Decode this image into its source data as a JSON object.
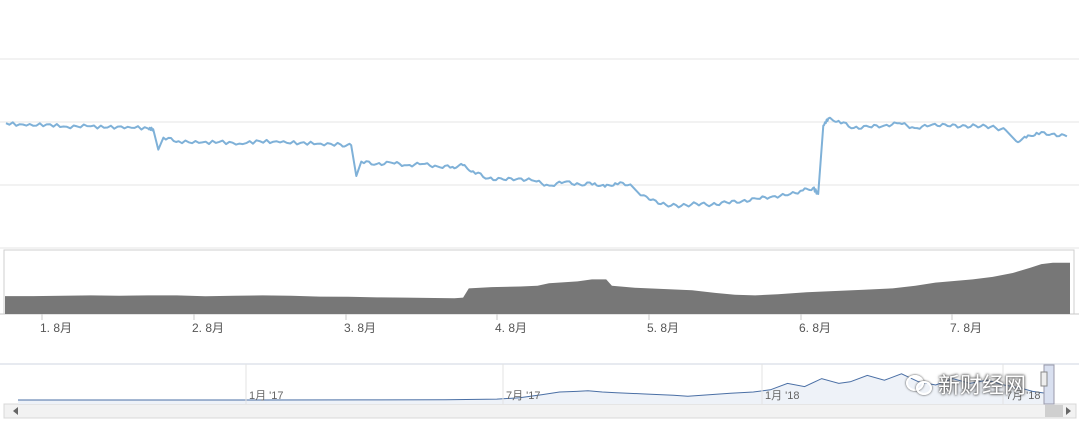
{
  "chart_data": {
    "type": "line",
    "main": {
      "x_ticks": [
        "1. 8月",
        "2. 8月",
        "3. 8月",
        "4. 8月",
        "5. 8月",
        "6. 8月",
        "7. 8月"
      ],
      "x_start_day": 0,
      "x_end_day": 210,
      "ylim": [
        0,
        100
      ],
      "grid": true,
      "series": [
        {
          "color": "#7fb1d8",
          "points": [
            [
              0,
              52
            ],
            [
              4,
              51
            ],
            [
              8,
              51.5
            ],
            [
              12,
              50.5
            ],
            [
              16,
              50.8
            ],
            [
              20,
              50.2
            ],
            [
              24,
              50.5
            ],
            [
              28,
              49.8
            ],
            [
              29,
              49.5
            ],
            [
              30,
              41
            ],
            [
              31,
              46
            ],
            [
              34,
              44.5
            ],
            [
              38,
              43.8
            ],
            [
              42,
              44.2
            ],
            [
              46,
              43.5
            ],
            [
              50,
              44.5
            ],
            [
              54,
              44
            ],
            [
              58,
              43.8
            ],
            [
              62,
              43.5
            ],
            [
              66,
              43
            ],
            [
              68,
              42.8
            ],
            [
              69,
              30
            ],
            [
              70,
              36
            ],
            [
              73,
              35
            ],
            [
              76,
              35.5
            ],
            [
              79,
              34.5
            ],
            [
              82,
              35
            ],
            [
              85,
              34
            ],
            [
              88,
              33.8
            ],
            [
              90,
              34.5
            ],
            [
              92,
              32
            ],
            [
              95,
              29
            ],
            [
              98,
              28.5
            ],
            [
              101,
              29
            ],
            [
              104,
              28
            ],
            [
              107,
              26
            ],
            [
              110,
              27.5
            ],
            [
              113,
              26.5
            ],
            [
              116,
              27
            ],
            [
              118,
              25.5
            ],
            [
              120,
              27
            ],
            [
              123,
              26.5
            ],
            [
              125,
              22
            ],
            [
              127,
              20
            ],
            [
              130,
              18
            ],
            [
              133,
              17.5
            ],
            [
              136,
              18.5
            ],
            [
              139,
              18
            ],
            [
              142,
              19
            ],
            [
              145,
              19.5
            ],
            [
              148,
              20.5
            ],
            [
              151,
              21.5
            ],
            [
              154,
              22
            ],
            [
              157,
              24
            ],
            [
              159,
              25
            ],
            [
              160,
              22.5
            ],
            [
              161,
              51
            ],
            [
              162,
              54
            ],
            [
              164,
              53
            ],
            [
              167,
              50
            ],
            [
              170,
              50.5
            ],
            [
              173,
              51
            ],
            [
              176,
              52
            ],
            [
              179,
              50
            ],
            [
              182,
              51
            ],
            [
              185,
              51.5
            ],
            [
              188,
              50.5
            ],
            [
              191,
              51
            ],
            [
              194,
              50.5
            ],
            [
              197,
              49
            ],
            [
              199,
              44.5
            ],
            [
              201,
              46
            ],
            [
              203,
              48
            ],
            [
              206,
              47.5
            ],
            [
              209,
              46.5
            ]
          ]
        }
      ]
    },
    "volume": {
      "color": "#777777",
      "points": [
        [
          0,
          14
        ],
        [
          10,
          14
        ],
        [
          20,
          14.2
        ],
        [
          30,
          14.5
        ],
        [
          40,
          14.3
        ],
        [
          50,
          14.5
        ],
        [
          60,
          14.5
        ],
        [
          70,
          13.8
        ],
        [
          80,
          14.2
        ],
        [
          90,
          14.5
        ],
        [
          100,
          14.2
        ],
        [
          110,
          13.6
        ],
        [
          120,
          13.5
        ],
        [
          130,
          13
        ],
        [
          140,
          12.8
        ],
        [
          150,
          12.5
        ],
        [
          157,
          12.3
        ],
        [
          160,
          12.8
        ],
        [
          162,
          20
        ],
        [
          170,
          21
        ],
        [
          180,
          21.5
        ],
        [
          186,
          22
        ],
        [
          190,
          24
        ],
        [
          200,
          25.5
        ],
        [
          205,
          27
        ],
        [
          210,
          27
        ],
        [
          212,
          22
        ],
        [
          220,
          20.5
        ],
        [
          230,
          19.5
        ],
        [
          240,
          18.5
        ],
        [
          248,
          16.5
        ],
        [
          255,
          15
        ],
        [
          262,
          14.5
        ],
        [
          270,
          15.5
        ],
        [
          280,
          17
        ],
        [
          290,
          18
        ],
        [
          300,
          19
        ],
        [
          310,
          20
        ],
        [
          318,
          22
        ],
        [
          325,
          24.5
        ],
        [
          330,
          25.5
        ],
        [
          338,
          27
        ],
        [
          345,
          29
        ],
        [
          352,
          32
        ],
        [
          358,
          36
        ],
        [
          362,
          39
        ],
        [
          366,
          40
        ],
        [
          372,
          40
        ]
      ]
    },
    "navigator": {
      "x_labels": [
        "1月 '17",
        "7月 '17",
        "1月 '18",
        "7月 '18"
      ],
      "color": "#4a6fa5",
      "points": [
        [
          0,
          3
        ],
        [
          60,
          3
        ],
        [
          120,
          3.5
        ],
        [
          150,
          4
        ],
        [
          168,
          6
        ],
        [
          176,
          10
        ],
        [
          184,
          20
        ],
        [
          190,
          28
        ],
        [
          196,
          30
        ],
        [
          200,
          32
        ],
        [
          205,
          28
        ],
        [
          210,
          26
        ],
        [
          220,
          22
        ],
        [
          230,
          18
        ],
        [
          235,
          15
        ],
        [
          240,
          18
        ],
        [
          250,
          24
        ],
        [
          258,
          28
        ],
        [
          264,
          35
        ],
        [
          270,
          55
        ],
        [
          276,
          45
        ],
        [
          282,
          70
        ],
        [
          288,
          55
        ],
        [
          292,
          60
        ],
        [
          298,
          80
        ],
        [
          304,
          65
        ],
        [
          310,
          85
        ],
        [
          316,
          60
        ],
        [
          322,
          50
        ],
        [
          328,
          70
        ],
        [
          334,
          55
        ],
        [
          340,
          65
        ],
        [
          346,
          50
        ],
        [
          352,
          40
        ],
        [
          356,
          30
        ],
        [
          360,
          25
        ]
      ]
    }
  },
  "watermark": "新财经网"
}
